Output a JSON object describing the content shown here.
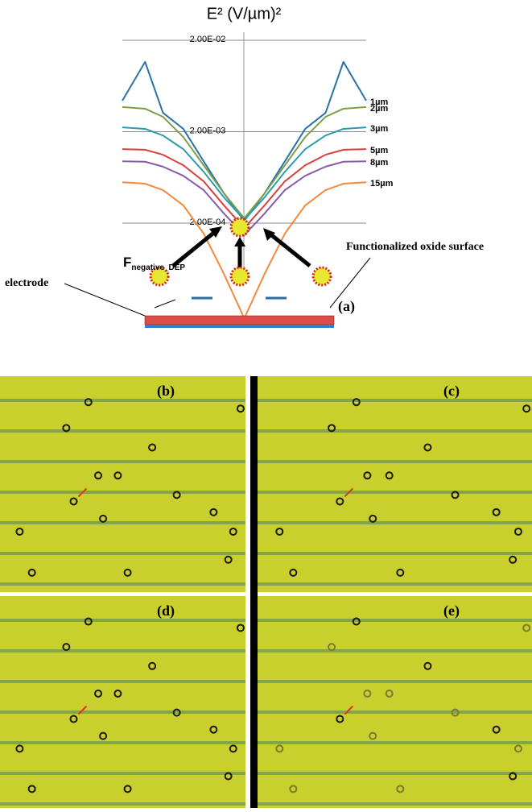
{
  "chart_data": {
    "type": "line",
    "title": "E² (V/µm)²",
    "log_y": true,
    "grid": true,
    "x": [
      -150,
      -122,
      -100,
      -75,
      -50,
      -25,
      0,
      25,
      50,
      75,
      100,
      122,
      150
    ],
    "xlim": [
      -150,
      150
    ],
    "ylim": [
      1.65e-05,
      0.0245
    ],
    "yticks": [
      {
        "value": 0.02,
        "label": "2.00E-02"
      },
      {
        "value": 0.002,
        "label": "2.00E-03"
      },
      {
        "value": 0.0002,
        "label": "2.00E-04"
      }
    ],
    "series": [
      {
        "name": "1µm",
        "color": "#2a72a8",
        "values": [
          0.00437,
          0.0116,
          0.00322,
          0.00215,
          0.00095,
          0.000424,
          0.000212,
          0.000424,
          0.00095,
          0.00215,
          0.00322,
          0.0116,
          0.00437
        ]
      },
      {
        "name": "2µm",
        "color": "#7ba048",
        "values": [
          0.00372,
          0.00357,
          0.00291,
          0.00175,
          0.00086,
          0.000424,
          0.000226,
          0.000424,
          0.00086,
          0.00175,
          0.00291,
          0.00357,
          0.00372
        ]
      },
      {
        "name": "3µm",
        "color": "#2b9bb0",
        "values": [
          0.00223,
          0.00215,
          0.00182,
          0.00129,
          0.00073,
          0.000383,
          0.000217,
          0.000383,
          0.00073,
          0.00129,
          0.00182,
          0.00215,
          0.00223
        ]
      },
      {
        "name": "5µm",
        "color": "#d9403c",
        "values": [
          0.00129,
          0.00127,
          0.00112,
          0.00086,
          0.000574,
          0.000313,
          0.000177,
          0.000313,
          0.000574,
          0.00086,
          0.00112,
          0.00127,
          0.00129
        ]
      },
      {
        "name": "8µm",
        "color": "#8a5aa8",
        "values": [
          0.00095,
          0.00094,
          0.00083,
          0.00066,
          0.00046,
          0.000255,
          0.000148,
          0.000255,
          0.00046,
          0.00066,
          0.00083,
          0.00094,
          0.00095
        ]
      },
      {
        "name": "15µm",
        "color": "#f08a3c",
        "values": [
          0.00056,
          0.00054,
          0.00046,
          0.000313,
          0.000154,
          5.57e-05,
          1.82e-05,
          5.57e-05,
          0.000154,
          0.000313,
          0.00046,
          0.00054,
          0.00056
        ]
      }
    ],
    "force_label": "F",
    "force_subscript": "negative_DEP",
    "annotations": [
      "Functionalized oxide surface",
      "electrode",
      "(a)"
    ],
    "panels": [
      "(b)",
      "(c)",
      "(d)",
      "(e)"
    ]
  }
}
